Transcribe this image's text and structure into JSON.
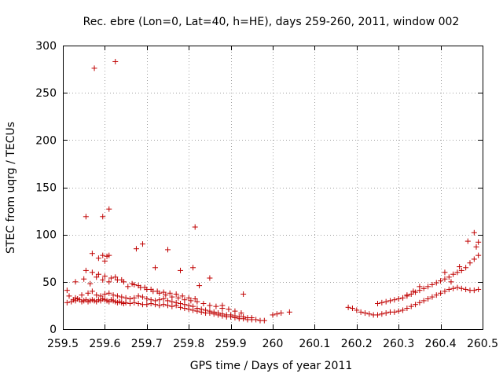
{
  "chart_data": {
    "type": "scatter",
    "title": "Rec. ebre (Lon=0, Lat=40, h=HE), days 259-260, 2011, window 002",
    "xlabel": "GPS time / Days of year 2011",
    "ylabel": "STEC from uqrg / TECUs",
    "xlim": [
      259.5,
      260.5
    ],
    "ylim": [
      0,
      300
    ],
    "xticks": [
      259.5,
      259.6,
      259.7,
      259.8,
      259.9,
      260,
      260.1,
      260.2,
      260.3,
      260.4,
      260.5
    ],
    "xtick_labels": [
      "259.5",
      "259.6",
      "259.7",
      "259.8",
      "259.9",
      "260",
      "260.1",
      "260.2",
      "260.3",
      "260.4",
      "260.5"
    ],
    "yticks": [
      0,
      50,
      100,
      150,
      200,
      250,
      300
    ],
    "ytick_labels": [
      "0",
      "50",
      "100",
      "150",
      "200",
      "250",
      "300"
    ],
    "grid": true,
    "marker": "+",
    "color": "#c00000",
    "series": [
      {
        "x": [
          259.51,
          259.52,
          259.525,
          259.53,
          259.535,
          259.54,
          259.545,
          259.55,
          259.555,
          259.56,
          259.565,
          259.57,
          259.575,
          259.58,
          259.585,
          259.59,
          259.595,
          259.6,
          259.605,
          259.61,
          259.615,
          259.62,
          259.625,
          259.63,
          259.635,
          259.64,
          259.645,
          259.65,
          259.66,
          259.67,
          259.68,
          259.69,
          259.7,
          259.71,
          259.72,
          259.73,
          259.74,
          259.75,
          259.76,
          259.77,
          259.78,
          259.79,
          259.8,
          259.81,
          259.82,
          259.83,
          259.84,
          259.85,
          259.86,
          259.87,
          259.88,
          259.89,
          259.9,
          259.91,
          259.92,
          259.93,
          259.94,
          259.95,
          259.96,
          259.97,
          259.98,
          259.51,
          259.515,
          259.53,
          259.545,
          259.56,
          259.57,
          259.58,
          259.59,
          259.6,
          259.61,
          259.62,
          259.63,
          259.64,
          259.65,
          259.66,
          259.67,
          259.68,
          259.69,
          259.7,
          259.71,
          259.72,
          259.73,
          259.74,
          259.75,
          259.76,
          259.77,
          259.78,
          259.79,
          259.8,
          259.81,
          259.82,
          259.83,
          259.84,
          259.85,
          259.86,
          259.87,
          259.88,
          259.89,
          259.9,
          259.91,
          259.92,
          259.93,
          259.94,
          259.95,
          259.53,
          259.55,
          259.565,
          259.58,
          259.595,
          259.61,
          259.625,
          259.64,
          259.655,
          259.67,
          259.685,
          259.7,
          259.715,
          259.73,
          259.745,
          259.76,
          259.775,
          259.79,
          259.805,
          259.82,
          259.835,
          259.85,
          259.865,
          259.88,
          259.895,
          259.91,
          259.925,
          259.555,
          259.57,
          259.585,
          259.6,
          259.615,
          259.63,
          259.645,
          259.665,
          259.68,
          259.695,
          259.71,
          259.725,
          259.74,
          259.755,
          259.77,
          259.785,
          259.8,
          259.815,
          259.585,
          259.595,
          259.6,
          259.605,
          259.61,
          259.57,
          259.675,
          259.69,
          259.72,
          259.75,
          259.78,
          259.81,
          259.825,
          259.85,
          259.88,
          259.93,
          259.555,
          259.595,
          259.61,
          259.815,
          259.575,
          259.625,
          260.0,
          260.01,
          260.02,
          260.04,
          260.18,
          260.19,
          260.2,
          260.21,
          260.22,
          260.23,
          260.24,
          260.25,
          260.26,
          260.27,
          260.28,
          260.29,
          260.3,
          260.31,
          260.32,
          260.33,
          260.34,
          260.35,
          260.36,
          260.37,
          260.38,
          260.39,
          260.4,
          260.41,
          260.42,
          260.43,
          260.44,
          260.45,
          260.46,
          260.47,
          260.48,
          260.49,
          260.25,
          260.26,
          260.27,
          260.28,
          260.29,
          260.3,
          260.31,
          260.32,
          260.33,
          260.34,
          260.35,
          260.36,
          260.37,
          260.38,
          260.39,
          260.4,
          260.41,
          260.42,
          260.43,
          260.44,
          260.45,
          260.46,
          260.47,
          260.48,
          260.49,
          260.32,
          260.335,
          260.35,
          260.41,
          260.425,
          260.445,
          260.465,
          260.48,
          260.485,
          260.49
        ],
        "y": [
          28,
          29,
          31,
          30,
          32,
          31,
          29,
          30,
          31,
          29,
          30,
          31,
          30,
          29,
          31,
          30,
          32,
          31,
          30,
          29,
          31,
          30,
          29,
          28,
          29,
          28,
          27,
          28,
          27,
          28,
          27,
          26,
          26,
          27,
          26,
          25,
          26,
          25,
          24,
          25,
          23,
          22,
          21,
          20,
          19,
          18,
          17,
          17,
          16,
          15,
          14,
          13,
          13,
          12,
          11,
          11,
          10,
          10,
          10,
          9,
          9,
          41,
          35,
          33,
          36,
          38,
          40,
          36,
          35,
          37,
          38,
          36,
          35,
          34,
          33,
          32,
          33,
          35,
          34,
          32,
          31,
          30,
          31,
          32,
          30,
          29,
          28,
          27,
          26,
          25,
          24,
          22,
          21,
          20,
          19,
          18,
          17,
          16,
          15,
          15,
          14,
          13,
          13,
          12,
          12,
          50,
          53,
          48,
          55,
          52,
          50,
          55,
          52,
          45,
          47,
          44,
          42,
          40,
          38,
          36,
          34,
          33,
          31,
          30,
          29,
          27,
          25,
          24,
          22,
          21,
          19,
          17,
          62,
          60,
          58,
          56,
          54,
          52,
          50,
          48,
          46,
          44,
          42,
          40,
          39,
          38,
          37,
          35,
          33,
          32,
          75,
          78,
          72,
          77,
          78,
          80,
          85,
          90,
          65,
          84,
          62,
          65,
          46,
          54,
          25,
          37,
          119,
          119,
          127,
          108,
          276,
          283,
          15,
          16,
          17,
          18,
          23,
          22,
          20,
          18,
          17,
          16,
          15,
          15,
          16,
          17,
          18,
          18,
          19,
          20,
          22,
          24,
          26,
          28,
          30,
          32,
          34,
          36,
          38,
          40,
          42,
          43,
          44,
          43,
          42,
          41,
          41,
          42,
          27,
          28,
          29,
          30,
          31,
          32,
          33,
          35,
          37,
          39,
          41,
          43,
          45,
          47,
          49,
          51,
          53,
          55,
          58,
          60,
          62,
          65,
          70,
          74,
          78,
          36,
          40,
          45,
          60,
          50,
          66,
          93,
          102,
          87,
          92
        ]
      }
    ]
  }
}
